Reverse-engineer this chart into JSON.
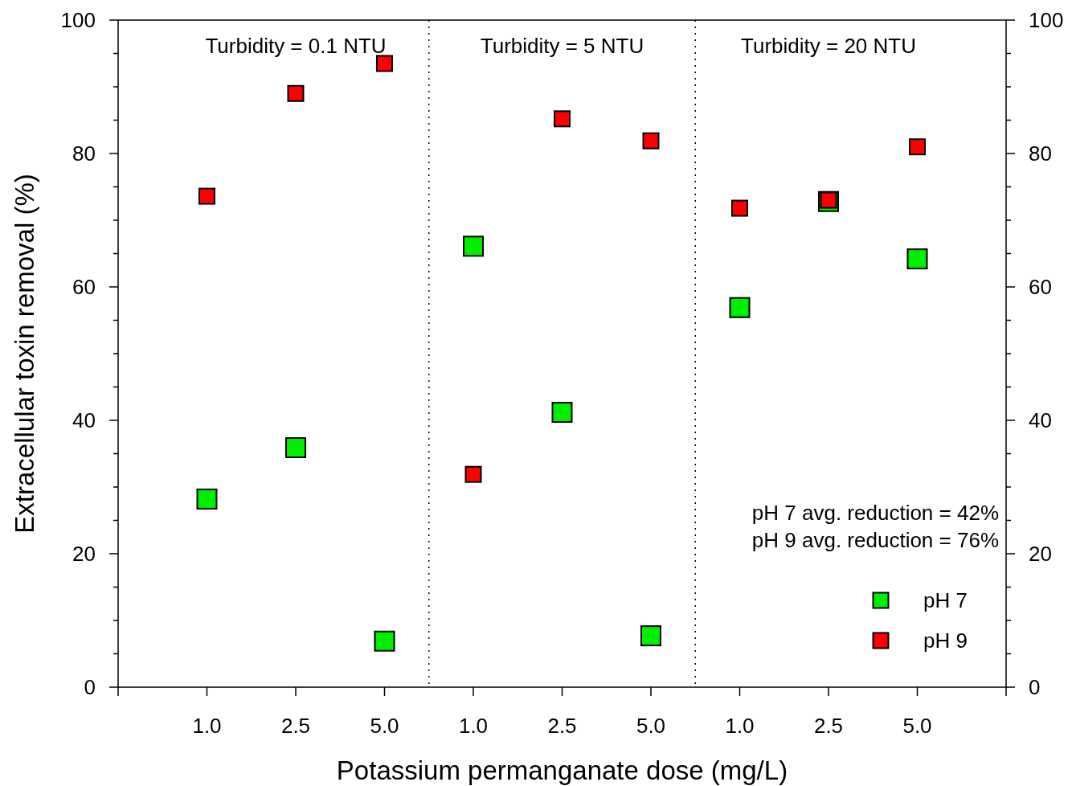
{
  "chart_data": {
    "type": "scatter",
    "xlabel": "Potassium permanganate dose (mg/L)",
    "ylabel": "Extracellular toxin removal (%)",
    "categories": [
      "1.0",
      "2.5",
      "5.0",
      "1.0",
      "2.5",
      "5.0",
      "1.0",
      "2.5",
      "5.0"
    ],
    "ylim": [
      0,
      100
    ],
    "yticks": [
      0,
      {
        "value": 5,
        "label": null
      },
      {
        "value": 10,
        "label": null
      },
      {
        "value": 15,
        "label": null
      },
      20,
      {
        "value": 25,
        "label": null
      },
      {
        "value": 30,
        "label": null
      },
      {
        "value": 35,
        "label": null
      },
      40,
      {
        "value": 45,
        "label": null
      },
      {
        "value": 50,
        "label": null
      },
      {
        "value": 55,
        "label": null
      },
      60,
      {
        "value": 65,
        "label": null
      },
      {
        "value": 70,
        "label": null
      },
      {
        "value": 75,
        "label": null
      },
      80,
      {
        "value": 85,
        "label": null
      },
      {
        "value": 90,
        "label": null
      },
      {
        "value": 95,
        "label": null
      },
      100
    ],
    "y2lim": [
      0,
      100
    ],
    "y2ticks": [
      0,
      {
        "value": 5,
        "label": null
      },
      {
        "value": 10,
        "label": null
      },
      {
        "value": 15,
        "label": null
      },
      20,
      {
        "value": 25,
        "label": null
      },
      {
        "value": 30,
        "label": null
      },
      {
        "value": 35,
        "label": null
      },
      40,
      {
        "value": 45,
        "label": null
      },
      {
        "value": 50,
        "label": null
      },
      {
        "value": 55,
        "label": null
      },
      60,
      {
        "value": 65,
        "label": null
      },
      {
        "value": 70,
        "label": null
      },
      {
        "value": 75,
        "label": null
      },
      80,
      {
        "value": 85,
        "label": null
      },
      {
        "value": 90,
        "label": null
      },
      {
        "value": 95,
        "label": null
      },
      100
    ],
    "series": [
      {
        "name": "pH 7",
        "color": "#00ee00",
        "values": [
          28.2,
          35.9,
          6.9,
          66.1,
          41.2,
          7.7,
          56.9,
          72.8,
          64.2
        ]
      },
      {
        "name": "pH 9",
        "color": "#ff0000",
        "values": [
          73.6,
          89.0,
          93.5,
          31.9,
          85.2,
          81.9,
          71.8,
          73.0,
          81.0
        ]
      }
    ],
    "annotations": [
      "Turbidity = 0.1 NTU",
      "Turbidity = 5 NTU",
      "Turbidity = 20 NTU",
      "pH 7 avg. reduction = 42%",
      "pH 9 avg. reduction = 76%"
    ],
    "marker": "square",
    "legend": "bottom right",
    "grid": false
  }
}
